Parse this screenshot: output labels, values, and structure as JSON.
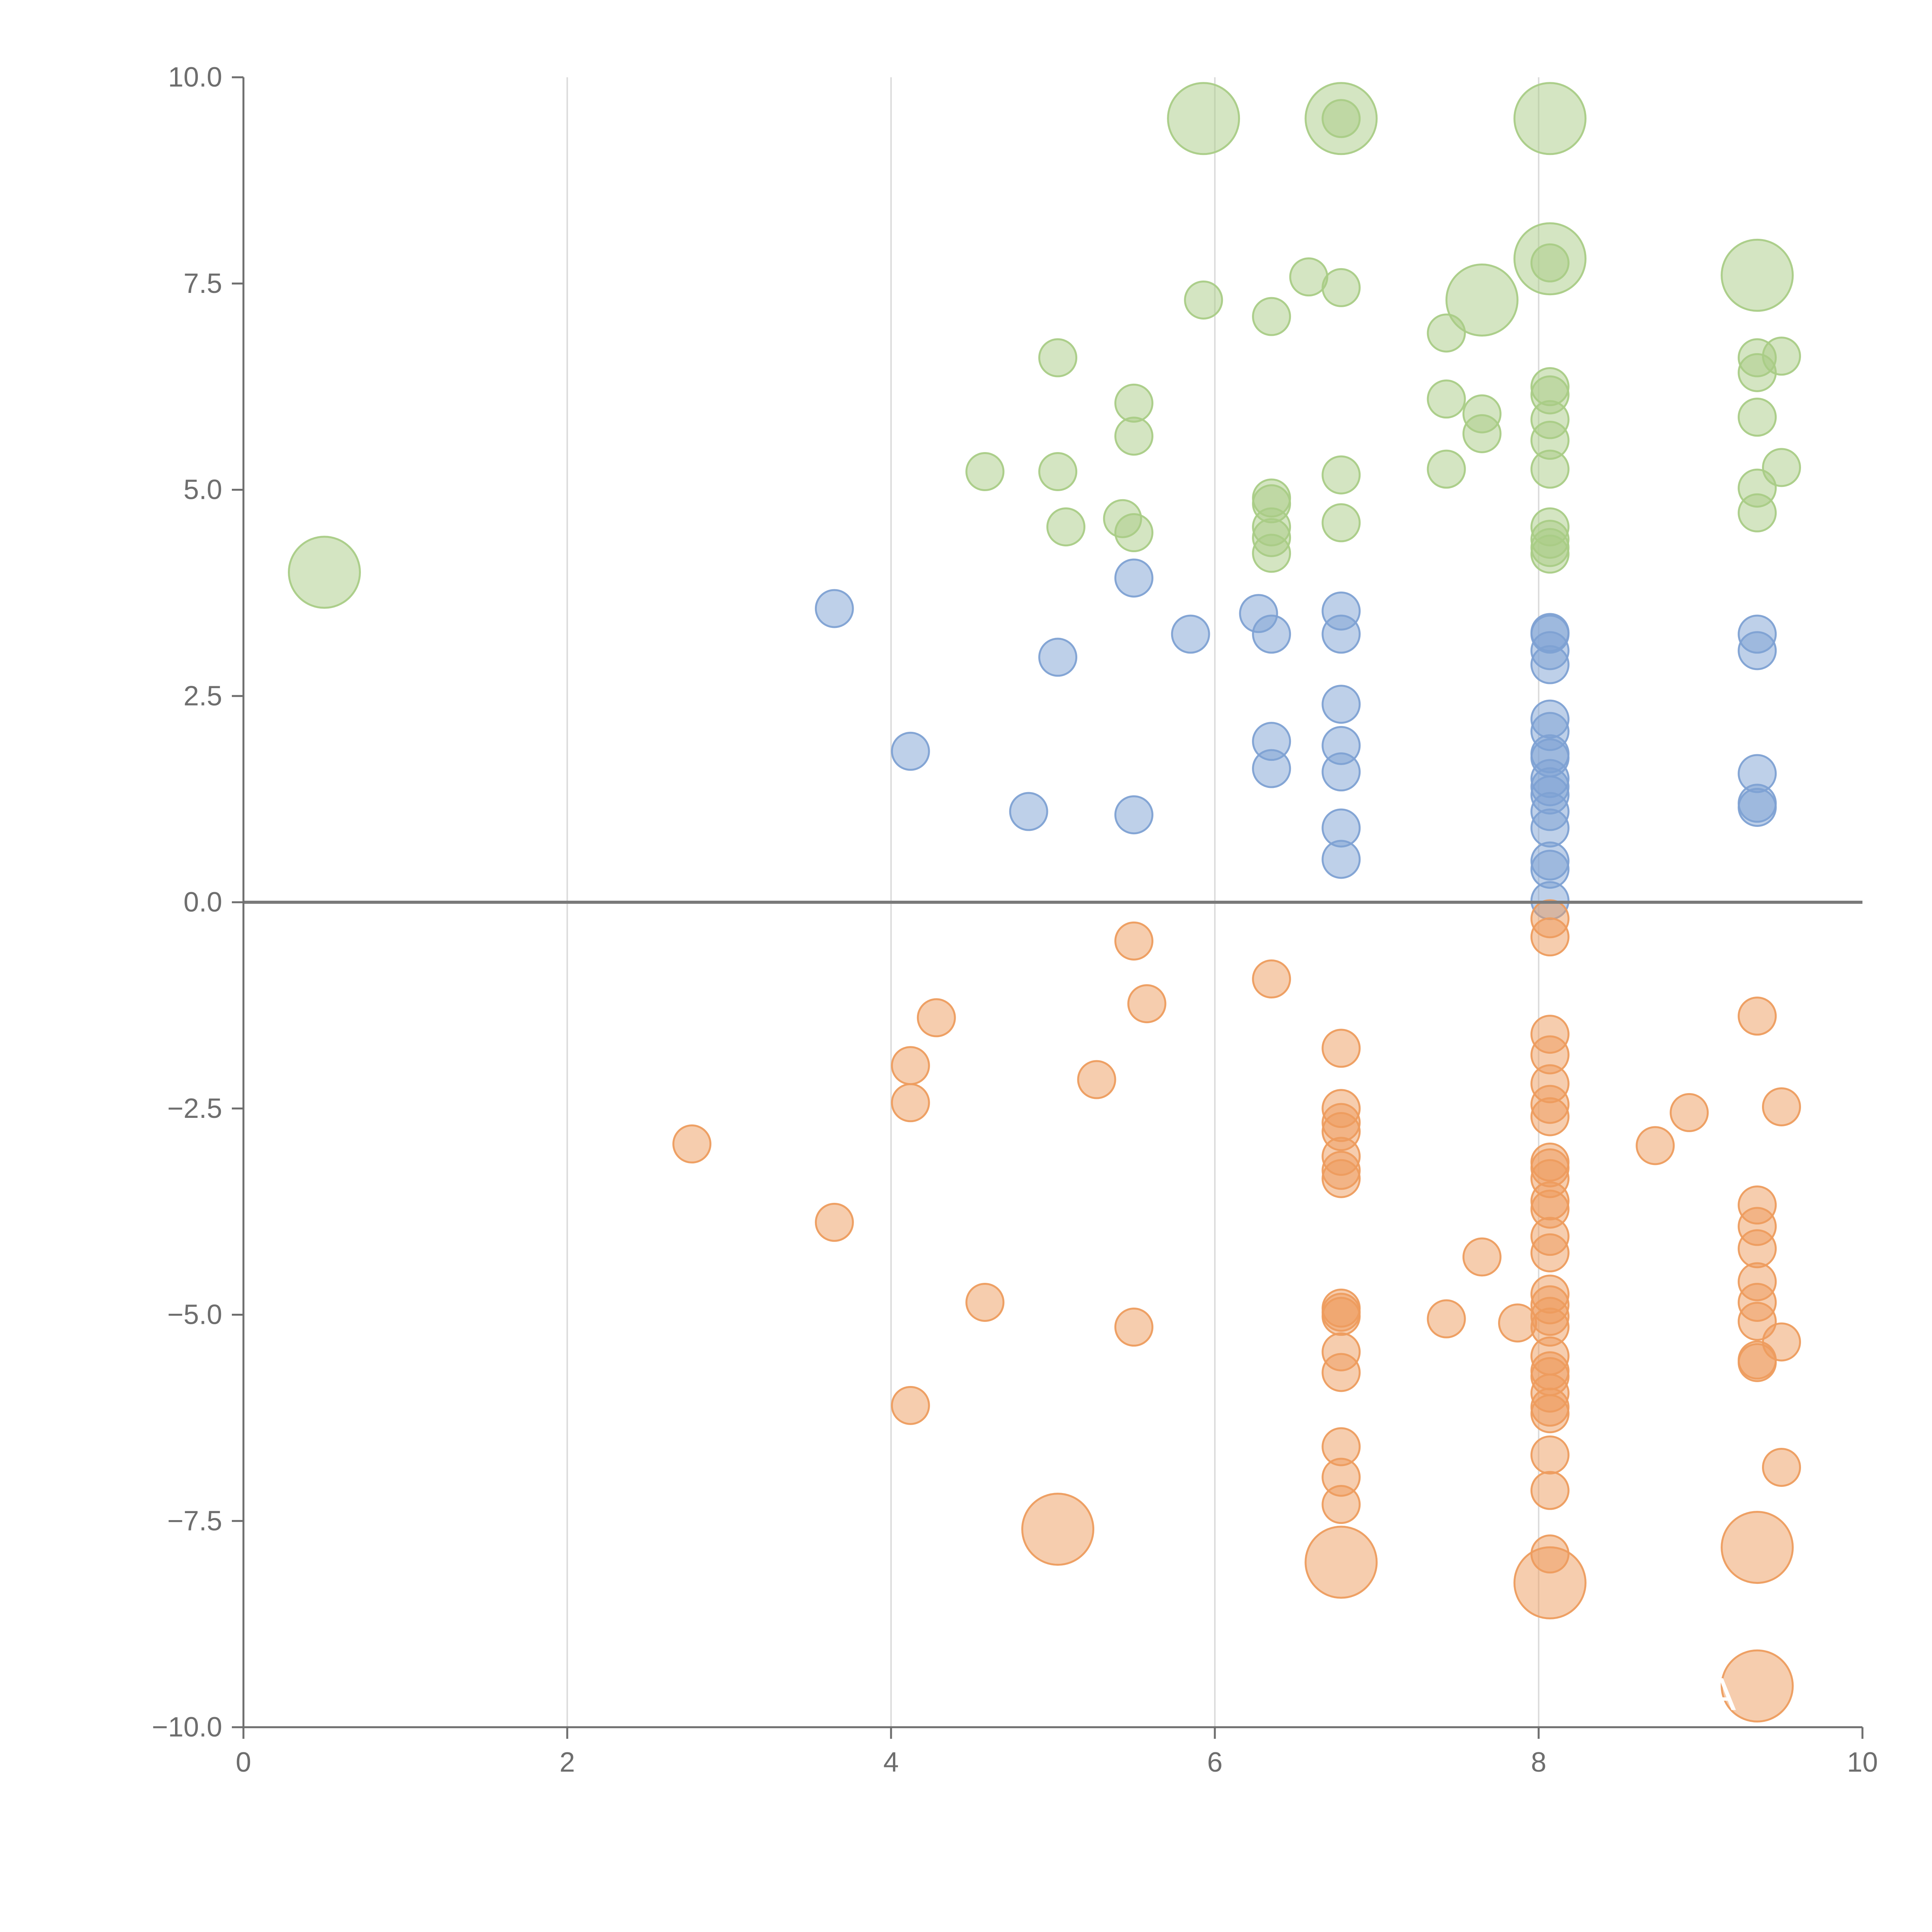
{
  "chart_data": {
    "type": "scatter",
    "title": "",
    "xlabel": "",
    "ylabel": "",
    "xlim": [
      0,
      10
    ],
    "ylim": [
      -10,
      10
    ],
    "x_ticks": [
      0,
      2,
      4,
      6,
      8,
      10
    ],
    "x_tick_labels": [
      "0",
      "2",
      "4",
      "6",
      "8",
      "10"
    ],
    "y_ticks": [
      10,
      7.5,
      5,
      2.5,
      0,
      -2.5,
      -5,
      -7.5,
      -10
    ],
    "y_tick_labels": [
      "10.0",
      "7.5",
      "5.0",
      "2.5",
      "0.0",
      "−2.5",
      "−5.0",
      "−7.5",
      "−10.0"
    ],
    "vertical_gridlines": [
      2,
      4,
      6,
      8
    ],
    "reference_line_y": 0,
    "bubble_label": "A",
    "colors": {
      "green": "#a9cc86",
      "blue": "#7ea1d3",
      "orange": "#ed9c5e",
      "axis": "#6e6e6e",
      "grid": "#dcdcdc",
      "zero_line": "#7a7a7a"
    },
    "series": [
      {
        "name": "green",
        "points": [
          [
            0.5,
            4.0,
            2
          ],
          [
            5.93,
            9.5,
            2
          ],
          [
            6.78,
            9.5,
            2
          ],
          [
            6.78,
            9.5,
            1
          ],
          [
            8.07,
            9.5,
            2
          ],
          [
            8.07,
            7.8,
            2
          ],
          [
            8.07,
            7.75,
            1
          ],
          [
            9.35,
            7.6,
            2
          ],
          [
            7.65,
            7.3,
            2
          ],
          [
            5.93,
            7.3,
            1
          ],
          [
            6.35,
            7.1,
            1
          ],
          [
            6.58,
            7.58,
            1
          ],
          [
            6.78,
            7.45,
            1
          ],
          [
            7.43,
            6.9,
            1
          ],
          [
            5.03,
            6.6,
            1
          ],
          [
            5.5,
            6.05,
            1
          ],
          [
            5.5,
            5.65,
            1
          ],
          [
            4.58,
            5.22,
            1
          ],
          [
            5.03,
            5.22,
            1
          ],
          [
            5.08,
            4.55,
            1
          ],
          [
            5.43,
            4.65,
            1
          ],
          [
            5.5,
            4.48,
            1
          ],
          [
            6.35,
            4.9,
            1
          ],
          [
            6.35,
            4.83,
            1
          ],
          [
            6.35,
            4.55,
            1
          ],
          [
            6.35,
            4.42,
            1
          ],
          [
            6.35,
            4.23,
            1
          ],
          [
            6.78,
            5.18,
            1
          ],
          [
            6.78,
            4.6,
            1
          ],
          [
            7.43,
            6.1,
            1
          ],
          [
            7.43,
            5.25,
            1
          ],
          [
            7.65,
            5.92,
            1
          ],
          [
            7.65,
            5.68,
            1
          ],
          [
            8.07,
            6.25,
            1
          ],
          [
            8.07,
            6.15,
            1
          ],
          [
            8.07,
            5.85,
            1
          ],
          [
            8.07,
            5.6,
            1
          ],
          [
            8.07,
            5.25,
            1
          ],
          [
            8.07,
            4.55,
            1
          ],
          [
            8.07,
            4.4,
            1
          ],
          [
            8.07,
            4.3,
            1
          ],
          [
            8.07,
            4.22,
            1
          ],
          [
            9.35,
            6.6,
            1
          ],
          [
            9.35,
            6.42,
            1
          ],
          [
            9.5,
            6.62,
            1
          ],
          [
            9.35,
            5.88,
            1
          ],
          [
            9.5,
            5.27,
            1
          ],
          [
            9.35,
            5.02,
            1
          ],
          [
            9.35,
            4.72,
            1
          ]
        ]
      },
      {
        "name": "blue",
        "points": [
          [
            3.65,
            3.56,
            1
          ],
          [
            4.12,
            1.83,
            1
          ],
          [
            4.85,
            1.1,
            1
          ],
          [
            5.03,
            2.97,
            1
          ],
          [
            5.5,
            3.93,
            1
          ],
          [
            5.5,
            1.06,
            1
          ],
          [
            5.85,
            3.25,
            1
          ],
          [
            6.27,
            3.5,
            1
          ],
          [
            6.35,
            3.25,
            1
          ],
          [
            6.35,
            1.95,
            1
          ],
          [
            6.35,
            1.62,
            1
          ],
          [
            6.78,
            3.53,
            1
          ],
          [
            6.78,
            3.25,
            1
          ],
          [
            6.78,
            2.4,
            1
          ],
          [
            6.78,
            1.9,
            1
          ],
          [
            6.78,
            1.58,
            1
          ],
          [
            6.78,
            0.9,
            1
          ],
          [
            6.78,
            0.52,
            1
          ],
          [
            8.07,
            3.27,
            1
          ],
          [
            8.07,
            3.25,
            1
          ],
          [
            8.07,
            3.05,
            1
          ],
          [
            8.07,
            2.88,
            1
          ],
          [
            8.07,
            2.22,
            1
          ],
          [
            8.07,
            2.07,
            1
          ],
          [
            8.07,
            1.8,
            1
          ],
          [
            8.07,
            1.75,
            1
          ],
          [
            8.07,
            1.5,
            1
          ],
          [
            8.07,
            1.4,
            1
          ],
          [
            8.07,
            1.3,
            1
          ],
          [
            8.07,
            1.1,
            1
          ],
          [
            8.07,
            0.9,
            1
          ],
          [
            8.07,
            0.5,
            1
          ],
          [
            8.07,
            0.4,
            1
          ],
          [
            8.07,
            0.02,
            1
          ],
          [
            9.35,
            3.25,
            1
          ],
          [
            9.35,
            3.05,
            1
          ],
          [
            9.35,
            1.56,
            1
          ],
          [
            9.35,
            1.2,
            1
          ],
          [
            9.35,
            1.15,
            1
          ]
        ]
      },
      {
        "name": "orange",
        "points": [
          [
            2.77,
            -2.93,
            1
          ],
          [
            3.65,
            -3.88,
            1
          ],
          [
            4.12,
            -1.98,
            1
          ],
          [
            4.12,
            -2.43,
            1
          ],
          [
            4.12,
            -6.1,
            1
          ],
          [
            4.28,
            -1.4,
            1
          ],
          [
            4.58,
            -4.85,
            1
          ],
          [
            5.03,
            -7.6,
            2
          ],
          [
            5.27,
            -2.15,
            1
          ],
          [
            5.5,
            -0.47,
            1
          ],
          [
            5.5,
            -5.15,
            1
          ],
          [
            5.58,
            -1.23,
            1
          ],
          [
            6.35,
            -0.93,
            1
          ],
          [
            6.78,
            -1.77,
            1
          ],
          [
            6.78,
            -2.5,
            1
          ],
          [
            6.78,
            -2.67,
            1
          ],
          [
            6.78,
            -2.78,
            1
          ],
          [
            6.78,
            -3.08,
            1
          ],
          [
            6.78,
            -3.25,
            1
          ],
          [
            6.78,
            -3.35,
            1
          ],
          [
            6.78,
            -4.92,
            1
          ],
          [
            6.78,
            -4.97,
            1
          ],
          [
            6.78,
            -5.02,
            1
          ],
          [
            6.78,
            -5.45,
            1
          ],
          [
            6.78,
            -5.7,
            1
          ],
          [
            6.78,
            -6.6,
            1
          ],
          [
            6.78,
            -6.97,
            1
          ],
          [
            6.78,
            -7.3,
            1
          ],
          [
            6.78,
            -8.0,
            2
          ],
          [
            7.43,
            -5.05,
            1
          ],
          [
            7.65,
            -4.3,
            1
          ],
          [
            7.87,
            -5.1,
            1
          ],
          [
            8.07,
            -0.2,
            1
          ],
          [
            8.07,
            -0.42,
            1
          ],
          [
            8.07,
            -1.6,
            1
          ],
          [
            8.07,
            -1.85,
            1
          ],
          [
            8.07,
            -2.2,
            1
          ],
          [
            8.07,
            -2.45,
            1
          ],
          [
            8.07,
            -2.6,
            1
          ],
          [
            8.07,
            -3.15,
            1
          ],
          [
            8.07,
            -3.22,
            1
          ],
          [
            8.07,
            -3.35,
            1
          ],
          [
            8.07,
            -3.62,
            1
          ],
          [
            8.07,
            -3.72,
            1
          ],
          [
            8.07,
            -4.05,
            1
          ],
          [
            8.07,
            -4.25,
            1
          ],
          [
            8.07,
            -4.75,
            1
          ],
          [
            8.07,
            -4.88,
            1
          ],
          [
            8.07,
            -5.02,
            1
          ],
          [
            8.07,
            -5.15,
            1
          ],
          [
            8.07,
            -5.5,
            1
          ],
          [
            8.07,
            -5.68,
            1
          ],
          [
            8.07,
            -5.75,
            1
          ],
          [
            8.07,
            -5.95,
            1
          ],
          [
            8.07,
            -6.12,
            1
          ],
          [
            8.07,
            -6.2,
            1
          ],
          [
            8.07,
            -6.7,
            1
          ],
          [
            8.07,
            -7.13,
            1
          ],
          [
            8.07,
            -7.9,
            1
          ],
          [
            8.07,
            -8.25,
            2
          ],
          [
            8.72,
            -2.95,
            1
          ],
          [
            8.93,
            -2.55,
            1
          ],
          [
            9.35,
            -1.38,
            1
          ],
          [
            9.35,
            -3.67,
            1
          ],
          [
            9.35,
            -3.93,
            1
          ],
          [
            9.35,
            -4.2,
            1
          ],
          [
            9.35,
            -4.6,
            1
          ],
          [
            9.35,
            -4.85,
            1
          ],
          [
            9.35,
            -5.08,
            1
          ],
          [
            9.35,
            -5.55,
            1
          ],
          [
            9.35,
            -5.58,
            1
          ],
          [
            9.35,
            -7.82,
            2
          ],
          [
            9.35,
            -9.5,
            2
          ],
          [
            9.5,
            -2.48,
            1
          ],
          [
            9.5,
            -5.33,
            1
          ],
          [
            9.5,
            -6.85,
            1
          ]
        ]
      }
    ]
  }
}
